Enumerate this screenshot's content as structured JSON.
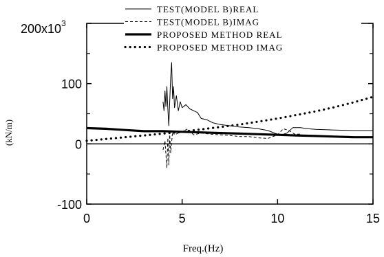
{
  "chart_data": {
    "type": "line",
    "title": "",
    "xlabel": "Freq.(Hz)",
    "ylabel": "(kN/m)",
    "xlim": [
      0,
      15
    ],
    "ylim": [
      -100,
      200
    ],
    "y_multiplier_label": "x10",
    "y_multiplier_exp": "3",
    "x_ticks": [
      0,
      5,
      10,
      15
    ],
    "x_tick_labels": [
      "0",
      "5",
      "10",
      "15"
    ],
    "y_ticks": [
      -100,
      0,
      100,
      200
    ],
    "y_tick_labels": [
      "-100",
      "0",
      "100",
      "200"
    ],
    "y_minor_ticks": [
      -50,
      50,
      150
    ],
    "zero_line": true,
    "grid": false,
    "legend_position": "top-right",
    "series": [
      {
        "name": "TEST(MODEL B)REAL",
        "style": "thin-solid",
        "x": [
          4.0,
          4.05,
          4.1,
          4.15,
          4.2,
          4.25,
          4.3,
          4.35,
          4.4,
          4.45,
          4.5,
          4.55,
          4.6,
          4.7,
          4.8,
          4.9,
          5.0,
          5.2,
          5.4,
          5.6,
          5.8,
          6.0,
          6.3,
          6.6,
          7.0,
          7.5,
          8.0,
          8.5,
          9.0,
          9.5,
          9.9,
          10.2,
          10.5,
          10.8,
          11.2,
          11.6,
          12.0,
          13.0,
          14.0,
          15.0
        ],
        "y": [
          70,
          55,
          88,
          62,
          95,
          58,
          30,
          70,
          110,
          135,
          75,
          95,
          60,
          80,
          55,
          70,
          60,
          65,
          58,
          55,
          52,
          42,
          40,
          35,
          32,
          30,
          28,
          27,
          25,
          22,
          17,
          15,
          18,
          27,
          27,
          25,
          24,
          23,
          22,
          22
        ]
      },
      {
        "name": "TEST(MODEL B)IMAG",
        "style": "thin-dashed",
        "x": [
          4.0,
          4.1,
          4.2,
          4.25,
          4.3,
          4.35,
          4.4,
          4.5,
          4.6,
          4.8,
          5.0,
          5.3,
          5.6,
          6.0,
          6.5,
          7.0,
          7.5,
          8.0,
          8.5,
          9.0,
          9.5,
          10.0,
          10.3,
          10.6,
          10.9,
          11.2
        ],
        "y": [
          -10,
          5,
          -40,
          10,
          -35,
          15,
          -15,
          20,
          15,
          18,
          20,
          25,
          15,
          18,
          16,
          15,
          14,
          12,
          12,
          10,
          9,
          15,
          25,
          22,
          16,
          16
        ]
      },
      {
        "name": "PROPOSED METHOD REAL",
        "style": "thick-solid",
        "x": [
          0,
          1,
          2,
          3,
          4,
          5,
          6,
          7,
          8,
          9,
          10,
          11,
          12,
          13,
          14,
          15
        ],
        "y": [
          26,
          25,
          23,
          21,
          21,
          20,
          19,
          18,
          17,
          16,
          15,
          14,
          13,
          12,
          11,
          11
        ]
      },
      {
        "name": "PROPOSED METHOD IMAG",
        "style": "thick-dotted",
        "x": [
          0,
          1,
          2,
          3,
          4,
          5,
          6,
          7,
          8,
          9,
          10,
          11,
          12,
          13,
          14,
          15
        ],
        "y": [
          5,
          8,
          11,
          14,
          17,
          20,
          24,
          28,
          32,
          37,
          42,
          48,
          54,
          61,
          69,
          78
        ]
      }
    ]
  }
}
